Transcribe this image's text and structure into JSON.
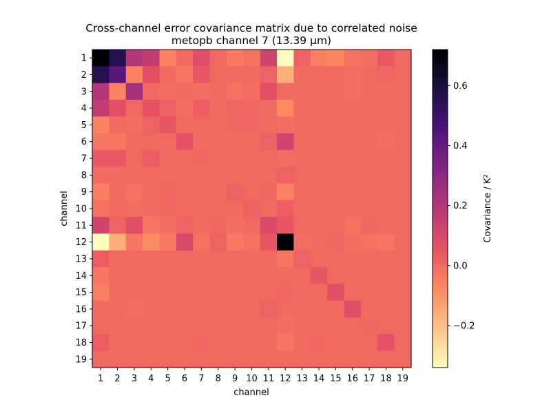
{
  "chart_data": {
    "type": "heatmap",
    "title": "Cross-channel error covariance matrix due to correlated noise",
    "subtitle": "metopb channel 7 (13.39 µm)",
    "xlabel": "channel",
    "ylabel": "channel",
    "x_categories": [
      "1",
      "2",
      "3",
      "4",
      "5",
      "6",
      "7",
      "8",
      "9",
      "10",
      "11",
      "12",
      "13",
      "14",
      "15",
      "16",
      "17",
      "18",
      "19"
    ],
    "y_categories": [
      "1",
      "2",
      "3",
      "4",
      "5",
      "6",
      "7",
      "8",
      "9",
      "10",
      "11",
      "12",
      "13",
      "14",
      "15",
      "16",
      "17",
      "18",
      "19"
    ],
    "colormap": "magma_r",
    "vmin": -0.34,
    "vmax": 0.72,
    "colorbar": {
      "label": "Covariance / K²",
      "ticks": [
        -0.2,
        0.0,
        0.2,
        0.4,
        0.6
      ],
      "tick_labels": [
        "−0.2",
        "0.0",
        "0.2",
        "0.4",
        "0.6"
      ]
    },
    "values": [
      [
        0.72,
        0.56,
        0.2,
        0.16,
        -0.06,
        0.0,
        0.08,
        0.0,
        -0.04,
        -0.02,
        0.12,
        -0.34,
        0.02,
        -0.05,
        -0.07,
        -0.02,
        -0.01,
        0.04,
        0.0
      ],
      [
        0.56,
        0.43,
        -0.06,
        0.07,
        0.0,
        -0.03,
        0.04,
        0.0,
        0.0,
        0.0,
        0.02,
        -0.16,
        0.0,
        0.0,
        0.0,
        -0.01,
        0.0,
        0.01,
        0.0
      ],
      [
        0.2,
        -0.06,
        0.24,
        0.0,
        -0.01,
        0.0,
        -0.01,
        0.0,
        -0.02,
        -0.01,
        0.07,
        0.0,
        0.0,
        0.0,
        0.0,
        -0.01,
        0.0,
        0.0,
        0.0
      ],
      [
        0.16,
        0.07,
        0.0,
        0.06,
        0.02,
        -0.01,
        0.03,
        0.0,
        0.01,
        0.01,
        0.0,
        -0.08,
        0.0,
        0.0,
        0.0,
        0.0,
        0.0,
        0.0,
        0.0
      ],
      [
        -0.06,
        0.0,
        -0.01,
        0.02,
        0.05,
        0.0,
        0.0,
        0.0,
        0.01,
        0.01,
        0.0,
        -0.01,
        0.0,
        0.0,
        0.0,
        0.0,
        0.0,
        0.0,
        0.0
      ],
      [
        -0.03,
        -0.03,
        0.0,
        0.0,
        0.0,
        0.06,
        0.0,
        0.0,
        0.0,
        0.0,
        0.02,
        0.12,
        0.0,
        0.0,
        0.0,
        0.0,
        0.0,
        -0.01,
        0.0
      ],
      [
        0.04,
        0.04,
        0.0,
        0.03,
        0.0,
        0.0,
        0.01,
        0.0,
        0.0,
        0.0,
        0.0,
        -0.01,
        0.0,
        0.0,
        0.0,
        0.0,
        0.0,
        0.0,
        0.0
      ],
      [
        0.0,
        0.0,
        0.0,
        0.0,
        0.0,
        0.0,
        0.0,
        0.0,
        0.0,
        0.0,
        0.0,
        0.02,
        0.0,
        0.0,
        0.0,
        0.0,
        0.0,
        0.0,
        0.0
      ],
      [
        -0.05,
        0.0,
        -0.02,
        0.0,
        0.01,
        0.0,
        0.0,
        0.0,
        0.02,
        0.0,
        0.01,
        -0.06,
        0.0,
        0.0,
        0.0,
        0.0,
        0.0,
        0.0,
        0.0
      ],
      [
        -0.02,
        0.0,
        -0.01,
        0.0,
        0.01,
        0.0,
        0.0,
        0.0,
        0.0,
        0.02,
        0.0,
        0.03,
        0.0,
        0.0,
        0.0,
        0.0,
        0.0,
        0.0,
        0.0
      ],
      [
        0.12,
        0.02,
        0.08,
        -0.03,
        -0.01,
        0.02,
        0.0,
        0.01,
        -0.01,
        0.0,
        0.1,
        0.05,
        0.0,
        0.0,
        0.0,
        -0.02,
        0.01,
        0.0,
        0.0
      ],
      [
        -0.34,
        -0.16,
        -0.03,
        -0.08,
        -0.04,
        0.1,
        -0.02,
        0.02,
        -0.04,
        -0.02,
        0.05,
        0.72,
        -0.01,
        0.0,
        0.01,
        -0.01,
        -0.02,
        -0.03,
        0.0
      ],
      [
        0.03,
        0.0,
        0.0,
        0.0,
        0.0,
        0.0,
        0.0,
        0.0,
        0.0,
        0.0,
        0.0,
        -0.03,
        0.02,
        0.0,
        0.0,
        0.0,
        0.0,
        0.0,
        0.0
      ],
      [
        -0.03,
        0.0,
        0.0,
        0.0,
        0.0,
        0.0,
        0.0,
        0.0,
        0.0,
        0.0,
        0.0,
        0.0,
        0.0,
        0.05,
        0.0,
        0.0,
        0.0,
        0.0,
        0.0
      ],
      [
        -0.05,
        0.0,
        0.0,
        0.0,
        0.0,
        0.0,
        0.0,
        0.0,
        0.0,
        0.0,
        0.0,
        0.01,
        0.0,
        0.0,
        0.07,
        0.0,
        0.0,
        0.0,
        0.0
      ],
      [
        0.0,
        0.0,
        -0.01,
        0.0,
        0.0,
        0.0,
        0.0,
        0.0,
        0.0,
        0.0,
        0.02,
        0.0,
        0.0,
        0.0,
        0.0,
        0.08,
        0.0,
        0.0,
        0.0
      ],
      [
        0.0,
        0.0,
        0.0,
        0.0,
        0.0,
        0.0,
        0.0,
        0.0,
        0.0,
        0.0,
        0.0,
        -0.01,
        0.0,
        0.0,
        0.0,
        0.0,
        0.01,
        0.0,
        0.0
      ],
      [
        0.03,
        0.0,
        0.0,
        0.0,
        0.0,
        0.0,
        0.01,
        0.0,
        0.0,
        0.0,
        0.0,
        -0.03,
        0.0,
        0.01,
        0.0,
        0.0,
        0.0,
        0.06,
        0.0
      ],
      [
        0.0,
        0.0,
        0.0,
        0.0,
        0.0,
        0.0,
        0.0,
        0.0,
        0.0,
        0.0,
        0.0,
        0.0,
        0.0,
        0.0,
        0.0,
        0.0,
        0.0,
        0.0,
        0.0
      ]
    ]
  }
}
